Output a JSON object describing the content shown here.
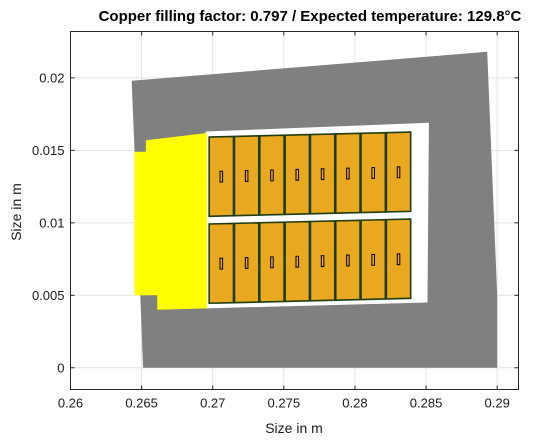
{
  "chart_data": {
    "type": "patch-plot",
    "title": "Copper filling factor: 0.797 / Expected temperature: 129.8°C",
    "xlabel": "Size in m",
    "ylabel": "Size in m",
    "xlim": [
      0.26,
      0.2915
    ],
    "ylim": [
      -0.0015,
      0.0232
    ],
    "xticks": [
      0.26,
      0.265,
      0.27,
      0.275,
      0.28,
      0.285,
      0.29
    ],
    "xtick_labels": [
      "0.26",
      "0.265",
      "0.27",
      "0.275",
      "0.28",
      "0.285",
      "0.29"
    ],
    "yticks": [
      0,
      0.005,
      0.01,
      0.015,
      0.02
    ],
    "ytick_labels": [
      "0",
      "0.005",
      "0.01",
      "0.015",
      "0.02"
    ],
    "grid": true,
    "colors": {
      "core": "#808080",
      "insulation": "#ffffff",
      "wedge": "#ffff00",
      "conductor": "#e8a820",
      "conductor_edge": "#1f3d10",
      "strand_hole": "#000000"
    },
    "core_polygon": [
      [
        0.2651,
        0.0
      ],
      [
        0.29,
        0.0
      ],
      [
        0.29,
        0.005
      ],
      [
        0.2893,
        0.0218
      ],
      [
        0.2643,
        0.0198
      ],
      [
        0.2649,
        0.0052
      ]
    ],
    "insulation_polygon": [
      [
        0.2695,
        0.0041
      ],
      [
        0.2851,
        0.0045
      ],
      [
        0.2852,
        0.0169
      ],
      [
        0.2695,
        0.0163
      ]
    ],
    "wedge_polygon": [
      [
        0.2645,
        0.0149
      ],
      [
        0.2653,
        0.0149
      ],
      [
        0.2653,
        0.0157
      ],
      [
        0.2696,
        0.0162
      ],
      [
        0.2696,
        0.0041
      ],
      [
        0.2661,
        0.004
      ],
      [
        0.2661,
        0.005
      ],
      [
        0.2645,
        0.005
      ]
    ],
    "conductors": {
      "rows": [
        {
          "x_start": 0.26975,
          "width": 0.00178,
          "count": 8,
          "y_bottom_start": 0.01045,
          "y_bottom_end": 0.01075,
          "height": 0.00547
        },
        {
          "x_start": 0.26975,
          "width": 0.00178,
          "count": 8,
          "y_bottom_start": 0.00445,
          "y_bottom_end": 0.00475,
          "height": 0.00547
        }
      ],
      "hole_width": 0.00018,
      "hole_height": 0.00075
    }
  }
}
